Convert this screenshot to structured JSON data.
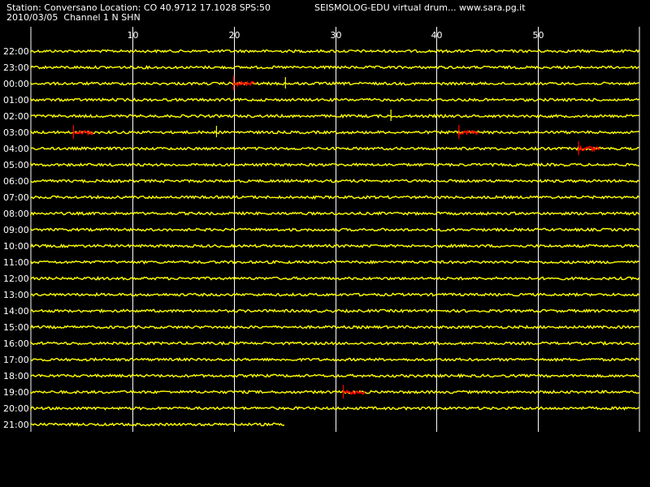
{
  "header": {
    "station_line": "Station: Conversano Location: CO 40.9712 17.1028 SPS:50",
    "app_line": "SEISMOLOG-EDU virtual drum... www.sara.pg.it",
    "date_line": "2010/03/05  Channel 1 N SHN"
  },
  "colors": {
    "background": "#000000",
    "trace": "#ffff00",
    "event": "#ff0000",
    "grid": "#ffffff",
    "text": "#ffffff"
  },
  "chart_data": {
    "type": "line",
    "title": "",
    "xlabel": "",
    "ylabel": "",
    "x_unit": "minutes",
    "xlim": [
      0,
      60
    ],
    "x_ticks": [
      10,
      20,
      30,
      40,
      50
    ],
    "x_tick_labels": [
      "10",
      "20",
      "30",
      "40",
      "50"
    ],
    "grid": true,
    "rows": [
      "22:00",
      "23:00",
      "00:00",
      "01:00",
      "02:00",
      "03:00",
      "04:00",
      "05:00",
      "06:00",
      "07:00",
      "08:00",
      "09:00",
      "10:00",
      "11:00",
      "12:00",
      "13:00",
      "14:00",
      "15:00",
      "16:00",
      "17:00",
      "18:00",
      "19:00",
      "20:00",
      "21:00"
    ],
    "last_row_end_minute": 25,
    "events": [
      {
        "row": "00:00",
        "start_minute": 20.0,
        "end_minute": 22.2
      },
      {
        "row": "03:00",
        "start_minute": 4.2,
        "end_minute": 6.2
      },
      {
        "row": "03:00",
        "start_minute": 42.2,
        "end_minute": 44.2
      },
      {
        "row": "04:00",
        "start_minute": 54.0,
        "end_minute": 56.2
      },
      {
        "row": "19:00",
        "start_minute": 30.8,
        "end_minute": 33.0
      }
    ],
    "spikes": [
      {
        "row": "00:00",
        "minute": 25.1
      },
      {
        "row": "02:00",
        "minute": 35.5
      },
      {
        "row": "03:00",
        "minute": 18.3
      }
    ]
  }
}
